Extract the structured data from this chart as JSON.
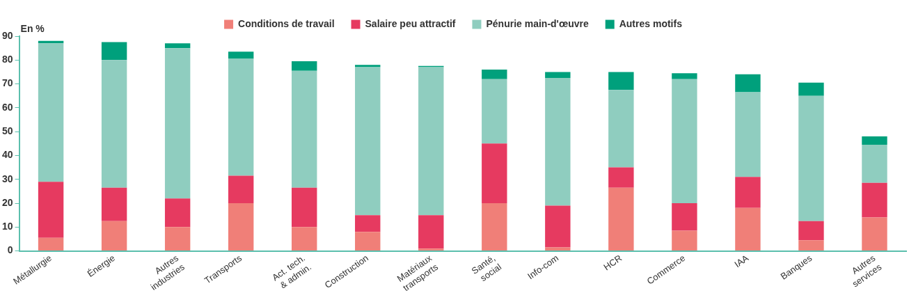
{
  "chart_data": {
    "type": "bar",
    "stacked": true,
    "ylabel": "En %",
    "categories": [
      "Métallurgie",
      "Énergie",
      "Autres\nindustries",
      "Transports",
      "Act. tech.\n& admin.",
      "Construction",
      "Matériaux\ntransports",
      "Santé,\nsocial",
      "Info-com",
      "HCR",
      "Commerce",
      "IAA",
      "Banques",
      "Autres\nservices"
    ],
    "series": [
      {
        "name": "Conditions de travail",
        "color": "#f07f78",
        "values": [
          5.5,
          12.5,
          10,
          20,
          10,
          8,
          1,
          20,
          1.5,
          26.5,
          8.5,
          18,
          4.5,
          14
        ]
      },
      {
        "name": "Salaire peu attractif",
        "color": "#e63a60",
        "values": [
          23.5,
          14,
          12,
          11.5,
          16.5,
          7,
          14,
          25,
          17.5,
          8.5,
          11.5,
          13,
          8,
          14.5
        ]
      },
      {
        "name": "Pénurie main-d'œuvre",
        "color": "#8fcdbf",
        "values": [
          58,
          53.5,
          63,
          49,
          49,
          62,
          62,
          27,
          53.5,
          32.5,
          52,
          35.5,
          52.5,
          16
        ]
      },
      {
        "name": "Autres motifs",
        "color": "#00a07c",
        "values": [
          1,
          7.5,
          2,
          3,
          4,
          1,
          0.5,
          4,
          2.5,
          7.5,
          2.5,
          7.5,
          5.5,
          3.5
        ]
      }
    ],
    "ylim": [
      0,
      90
    ],
    "yticks": [
      0,
      10,
      20,
      30,
      40,
      50,
      60,
      70,
      80,
      90
    ],
    "grid": false,
    "legend": "top"
  }
}
